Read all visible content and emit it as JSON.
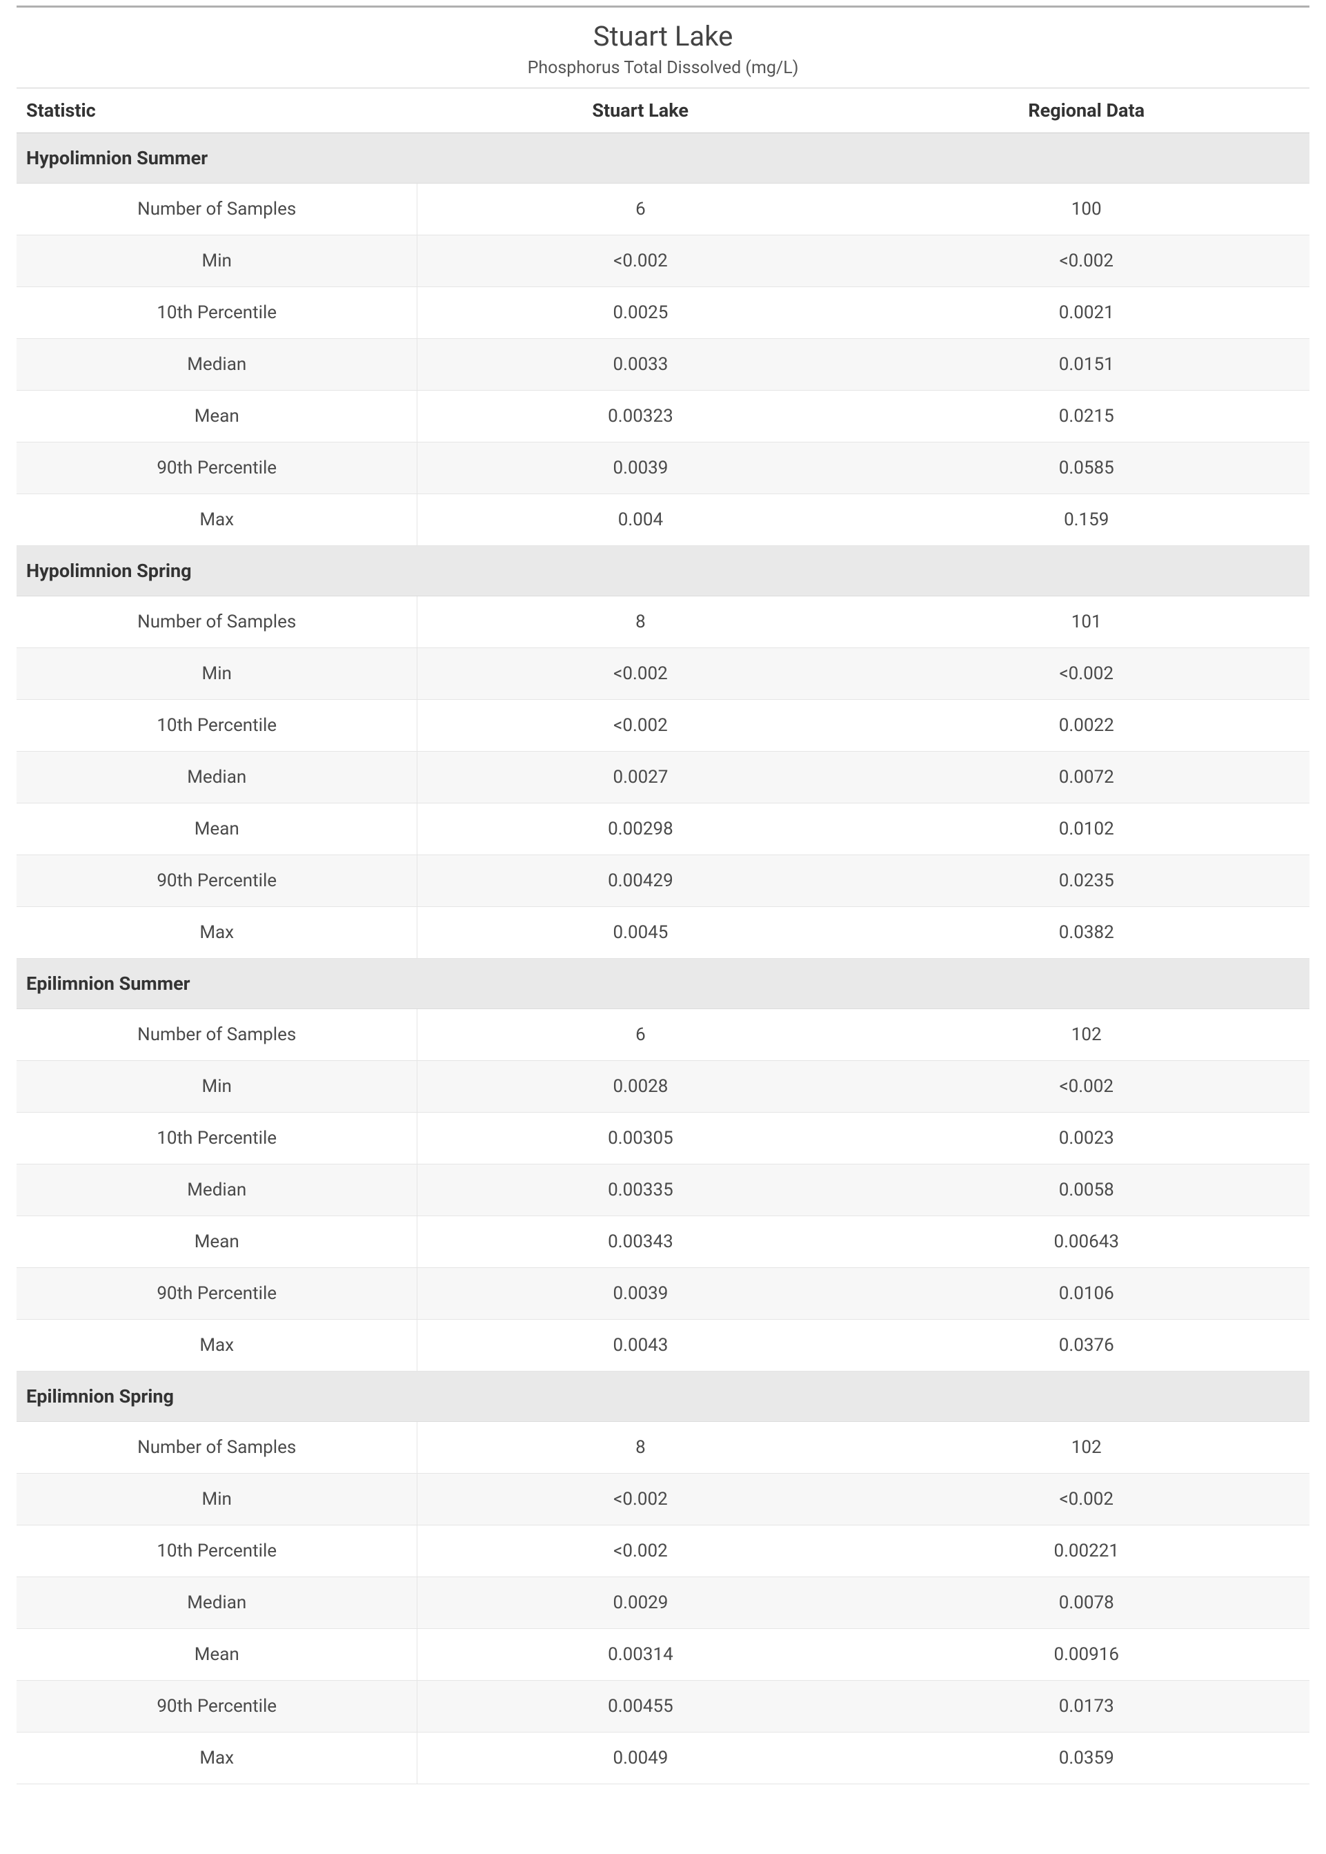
{
  "type": "table",
  "styling": {
    "font_family": "Segoe UI",
    "title_fontsize_pt": 30,
    "subtitle_fontsize_pt": 19,
    "header_fontsize_pt": 20,
    "group_fontsize_pt": 20,
    "cell_fontsize_pt": 19,
    "text_color": "#333333",
    "muted_text_color": "#555555",
    "background_color": "#ffffff",
    "panel_top_border_color": "#b0b0b0",
    "header_border_color": "#cfcfcf",
    "row_border_color": "#e5e5e5",
    "group_background": "#e9e9e9",
    "row_alt_background": "#f7f7f7",
    "column_widths_pct": [
      31,
      34.5,
      34.5
    ]
  },
  "title": "Stuart Lake",
  "subtitle": "Phosphorus Total Dissolved (mg/L)",
  "columns": [
    "Statistic",
    "Stuart Lake",
    "Regional Data"
  ],
  "stat_labels": [
    "Number of Samples",
    "Min",
    "10th Percentile",
    "Median",
    "Mean",
    "90th Percentile",
    "Max"
  ],
  "groups": [
    {
      "name": "Hypolimnion Summer",
      "rows": [
        [
          "6",
          "100"
        ],
        [
          "<0.002",
          "<0.002"
        ],
        [
          "0.0025",
          "0.0021"
        ],
        [
          "0.0033",
          "0.0151"
        ],
        [
          "0.00323",
          "0.0215"
        ],
        [
          "0.0039",
          "0.0585"
        ],
        [
          "0.004",
          "0.159"
        ]
      ]
    },
    {
      "name": "Hypolimnion Spring",
      "rows": [
        [
          "8",
          "101"
        ],
        [
          "<0.002",
          "<0.002"
        ],
        [
          "<0.002",
          "0.0022"
        ],
        [
          "0.0027",
          "0.0072"
        ],
        [
          "0.00298",
          "0.0102"
        ],
        [
          "0.00429",
          "0.0235"
        ],
        [
          "0.0045",
          "0.0382"
        ]
      ]
    },
    {
      "name": "Epilimnion Summer",
      "rows": [
        [
          "6",
          "102"
        ],
        [
          "0.0028",
          "<0.002"
        ],
        [
          "0.00305",
          "0.0023"
        ],
        [
          "0.00335",
          "0.0058"
        ],
        [
          "0.00343",
          "0.00643"
        ],
        [
          "0.0039",
          "0.0106"
        ],
        [
          "0.0043",
          "0.0376"
        ]
      ]
    },
    {
      "name": "Epilimnion Spring",
      "rows": [
        [
          "8",
          "102"
        ],
        [
          "<0.002",
          "<0.002"
        ],
        [
          "<0.002",
          "0.00221"
        ],
        [
          "0.0029",
          "0.0078"
        ],
        [
          "0.00314",
          "0.00916"
        ],
        [
          "0.00455",
          "0.0173"
        ],
        [
          "0.0049",
          "0.0359"
        ]
      ]
    }
  ]
}
